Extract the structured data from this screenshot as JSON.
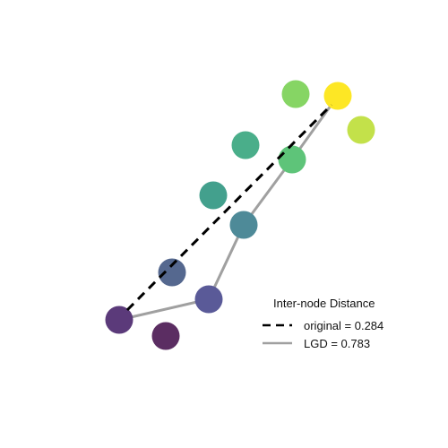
{
  "legend": {
    "title": "Inter-node Distance",
    "entries": [
      {
        "label": "original = 0.284",
        "style": "dashed",
        "color": "#000000"
      },
      {
        "label": "LGD = 0.783",
        "style": "solid",
        "color": "#a0a0a0"
      }
    ]
  },
  "colors": {
    "original_line": "#000000",
    "lgd_line": "#a0a0a0"
  },
  "nodes": [
    {
      "id": "n1",
      "color": "#5b3a7a"
    },
    {
      "id": "n2",
      "color": "#5b2d62"
    },
    {
      "id": "n3",
      "color": "#5a5a98"
    },
    {
      "id": "n4",
      "color": "#55688f"
    },
    {
      "id": "n5",
      "color": "#4e8a98"
    },
    {
      "id": "n6",
      "color": "#43a08d"
    },
    {
      "id": "n7",
      "color": "#4aae8a"
    },
    {
      "id": "n8",
      "color": "#5ec479"
    },
    {
      "id": "n9",
      "color": "#86d564"
    },
    {
      "id": "n10",
      "color": "#fde725"
    },
    {
      "id": "n11",
      "color": "#c3e14a"
    }
  ]
}
